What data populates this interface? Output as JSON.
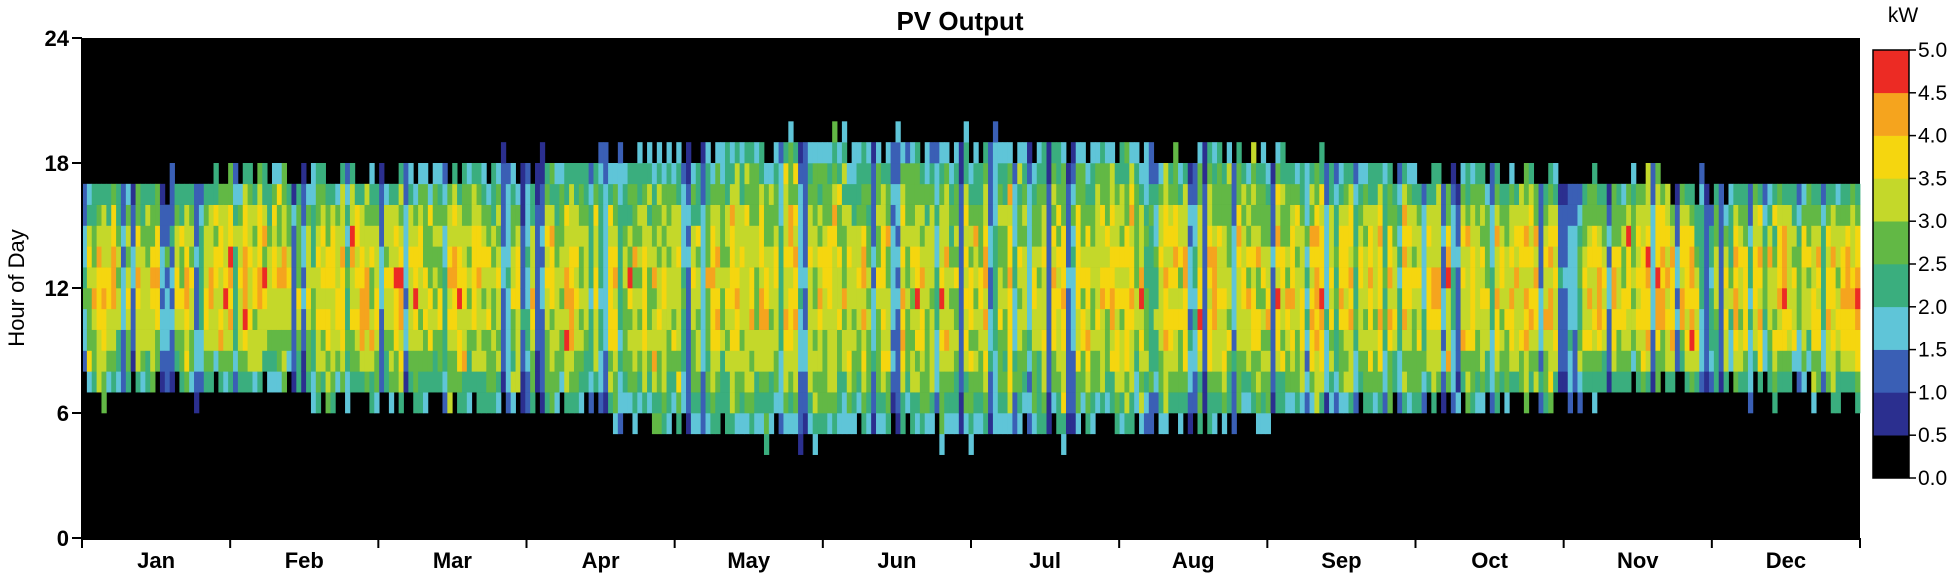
{
  "chart_data": {
    "type": "heatmap",
    "title": "PV Output",
    "xlabel": "",
    "ylabel": "Hour of Day",
    "x_categories": [
      "Jan",
      "Feb",
      "Mar",
      "Apr",
      "May",
      "Jun",
      "Jul",
      "Aug",
      "Sep",
      "Oct",
      "Nov",
      "Dec"
    ],
    "y_ticks": [
      0,
      6,
      12,
      18,
      24
    ],
    "ylim": [
      0,
      24
    ],
    "days": 365,
    "colorbar": {
      "unit": "kW",
      "min": 0.0,
      "max": 5.0,
      "ticks": [
        "0.0",
        "0.5",
        "1.0",
        "1.5",
        "2.0",
        "2.5",
        "3.0",
        "3.5",
        "4.0",
        "4.5",
        "5.0"
      ],
      "colors": [
        "#000000",
        "#2b2f8f",
        "#3a5fb5",
        "#5fc5d8",
        "#3aae7e",
        "#62b845",
        "#c4d82a",
        "#f5d60f",
        "#f5a41e",
        "#ec2b24"
      ]
    },
    "monthly_profile": [
      {
        "month": "Jan",
        "sunrise": 7.0,
        "sunset": 17.0,
        "peak_kw": 3.6
      },
      {
        "month": "Feb",
        "sunrise": 7.0,
        "sunset": 17.5,
        "peak_kw": 3.7
      },
      {
        "month": "Mar",
        "sunrise": 6.5,
        "sunset": 18.0,
        "peak_kw": 3.6
      },
      {
        "month": "Apr",
        "sunrise": 6.0,
        "sunset": 18.0,
        "peak_kw": 3.5
      },
      {
        "month": "May",
        "sunrise": 5.0,
        "sunset": 19.0,
        "peak_kw": 3.5
      },
      {
        "month": "Jun",
        "sunrise": 5.0,
        "sunset": 19.0,
        "peak_kw": 3.5
      },
      {
        "month": "Jul",
        "sunrise": 5.0,
        "sunset": 19.0,
        "peak_kw": 3.5
      },
      {
        "month": "Aug",
        "sunrise": 5.5,
        "sunset": 18.5,
        "peak_kw": 3.6
      },
      {
        "month": "Sep",
        "sunrise": 6.0,
        "sunset": 18.0,
        "peak_kw": 3.7
      },
      {
        "month": "Oct",
        "sunrise": 6.5,
        "sunset": 17.5,
        "peak_kw": 3.6
      },
      {
        "month": "Nov",
        "sunrise": 7.0,
        "sunset": 17.0,
        "peak_kw": 3.8
      },
      {
        "month": "Dec",
        "sunrise": 7.0,
        "sunset": 17.0,
        "peak_kw": 3.7
      }
    ],
    "grid": false,
    "legend": "right"
  }
}
